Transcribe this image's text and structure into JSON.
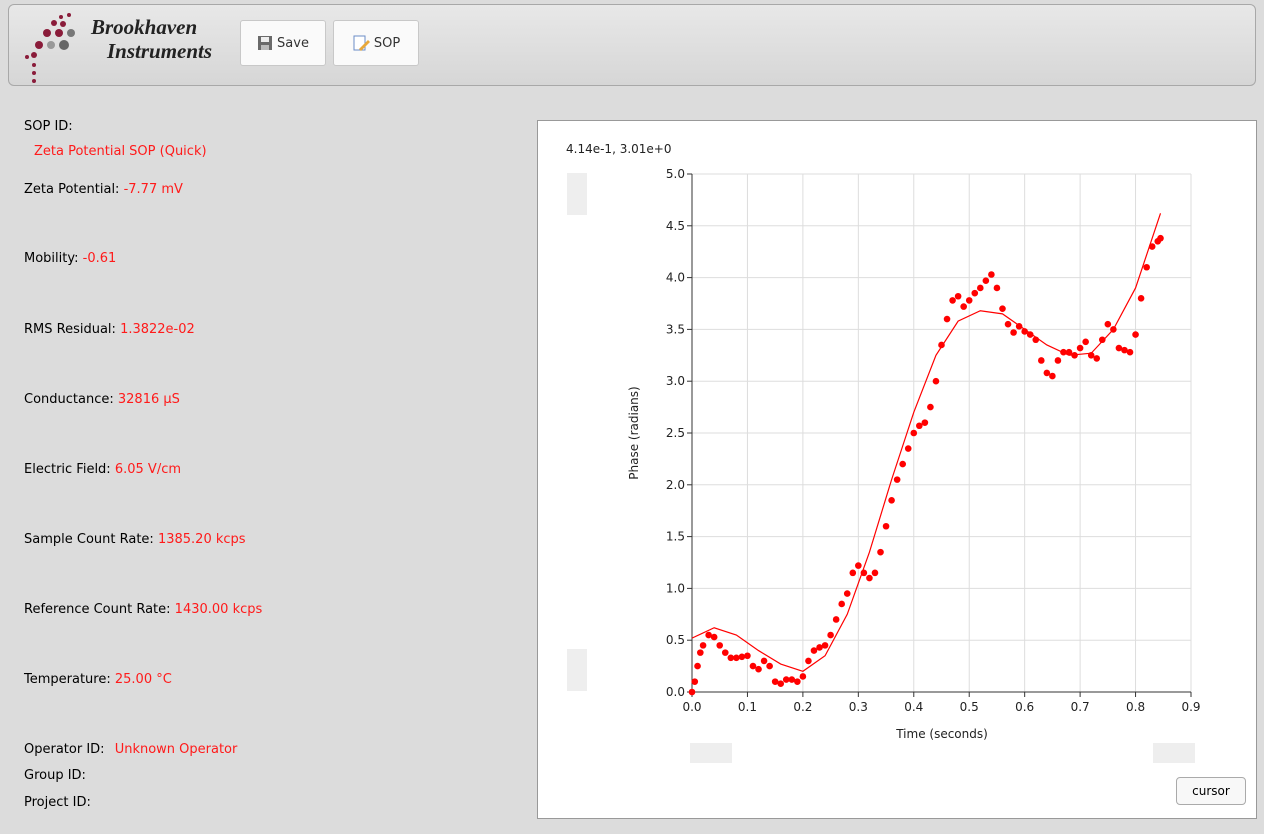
{
  "toolbar": {
    "logo_line1": "Brookhaven",
    "logo_line2": "Instruments",
    "save": "Save",
    "sop": "SOP"
  },
  "sop_id": {
    "label": "SOP ID:",
    "value": "Zeta Potential SOP (Quick)"
  },
  "fields": [
    {
      "label": "Zeta Potential:",
      "value": "-7.77 mV"
    },
    {
      "label": "Mobility:",
      "value": "-0.61"
    },
    {
      "label": "RMS Residual:",
      "value": "1.3822e-02"
    },
    {
      "label": "Conductance:",
      "value": "32816 µS"
    },
    {
      "label": "Electric Field:",
      "value": "6.05 V/cm"
    },
    {
      "label": "Sample Count Rate:",
      "value": "1385.20 kcps"
    },
    {
      "label": "Reference Count Rate:",
      "value": "1430.00 kcps"
    },
    {
      "label": "Temperature:",
      "value": "25.00 °C"
    }
  ],
  "ids": [
    {
      "label": "Operator ID:",
      "value": "Unknown Operator"
    },
    {
      "label": "Group ID:"
    },
    {
      "label": "Project ID:"
    }
  ],
  "chart_data": {
    "type": "scatter",
    "cursor_readout": "4.14e-1, 3.01e+0",
    "x_label": "Time (seconds)",
    "y_label": "Phase (radians)",
    "cursor_button": "cursor",
    "xlim": [
      0,
      0.9
    ],
    "ylim": [
      0,
      5
    ],
    "grid": true,
    "xticks": [
      {
        "value": 0,
        "label": "0.0"
      },
      0.1,
      0.2,
      0.3,
      0.4,
      0.5,
      0.6,
      0.7,
      0.8,
      0.9
    ],
    "yticks": [
      {
        "value": 0,
        "label": "0.0"
      },
      0.5,
      {
        "value": 1,
        "label": "1.0"
      },
      1.5,
      {
        "value": 2,
        "label": "2.0"
      },
      2.5,
      {
        "value": 3,
        "label": "3.0"
      },
      3.5,
      {
        "value": 4,
        "label": "4.0"
      },
      4.5,
      {
        "value": 5,
        "label": "5.0"
      }
    ],
    "series": [
      {
        "mode": "markers",
        "color": "#ff0000",
        "x": [
          0,
          0.005,
          0.01,
          0.015,
          0.02,
          0.03,
          0.04,
          0.05,
          0.06,
          0.07,
          0.08,
          0.09,
          0.1,
          0.11,
          0.12,
          0.13,
          0.14,
          0.15,
          0.16,
          0.17,
          0.18,
          0.19,
          0.2,
          0.21,
          0.22,
          0.23,
          0.24,
          0.25,
          0.26,
          0.27,
          0.28,
          0.29,
          0.3,
          0.31,
          0.32,
          0.33,
          0.34,
          0.35,
          0.36,
          0.37,
          0.38,
          0.39,
          0.4,
          0.41,
          0.42,
          0.43,
          0.44,
          0.45,
          0.46,
          0.47,
          0.48,
          0.49,
          0.5,
          0.51,
          0.52,
          0.53,
          0.54,
          0.55,
          0.56,
          0.57,
          0.58,
          0.59,
          0.6,
          0.61,
          0.62,
          0.63,
          0.64,
          0.65,
          0.66,
          0.67,
          0.68,
          0.69,
          0.7,
          0.71,
          0.72,
          0.73,
          0.74,
          0.75,
          0.76,
          0.77,
          0.78,
          0.79,
          0.8,
          0.81,
          0.82,
          0.83,
          0.84,
          0.845
        ],
        "values": [
          0,
          0.1,
          0.25,
          0.38,
          0.45,
          0.55,
          0.53,
          0.45,
          0.38,
          0.33,
          0.33,
          0.34,
          0.35,
          0.25,
          0.22,
          0.3,
          0.25,
          0.1,
          0.08,
          0.12,
          0.12,
          0.1,
          0.15,
          0.3,
          0.4,
          0.43,
          0.45,
          0.55,
          0.7,
          0.85,
          0.95,
          1.15,
          1.22,
          1.15,
          1.1,
          1.15,
          1.35,
          1.6,
          1.85,
          2.05,
          2.2,
          2.35,
          2.5,
          2.57,
          2.6,
          2.75,
          3.0,
          3.35,
          3.6,
          3.78,
          3.82,
          3.72,
          3.78,
          3.85,
          3.9,
          3.97,
          4.03,
          3.9,
          3.7,
          3.55,
          3.47,
          3.53,
          3.48,
          3.45,
          3.4,
          3.2,
          3.08,
          3.05,
          3.2,
          3.28,
          3.28,
          3.25,
          3.32,
          3.38,
          3.25,
          3.22,
          3.4,
          3.55,
          3.5,
          3.32,
          3.3,
          3.28,
          3.45,
          3.8,
          4.1,
          4.3,
          4.35,
          4.38
        ]
      },
      {
        "mode": "line",
        "color": "#ff0000",
        "x": [
          0,
          0.04,
          0.08,
          0.12,
          0.16,
          0.2,
          0.24,
          0.28,
          0.32,
          0.36,
          0.4,
          0.44,
          0.48,
          0.52,
          0.56,
          0.6,
          0.64,
          0.68,
          0.72,
          0.76,
          0.8,
          0.845
        ],
        "values": [
          0.52,
          0.62,
          0.55,
          0.4,
          0.27,
          0.2,
          0.35,
          0.75,
          1.35,
          2.05,
          2.7,
          3.25,
          3.58,
          3.68,
          3.65,
          3.5,
          3.35,
          3.25,
          3.27,
          3.5,
          3.9,
          4.62
        ]
      }
    ]
  }
}
